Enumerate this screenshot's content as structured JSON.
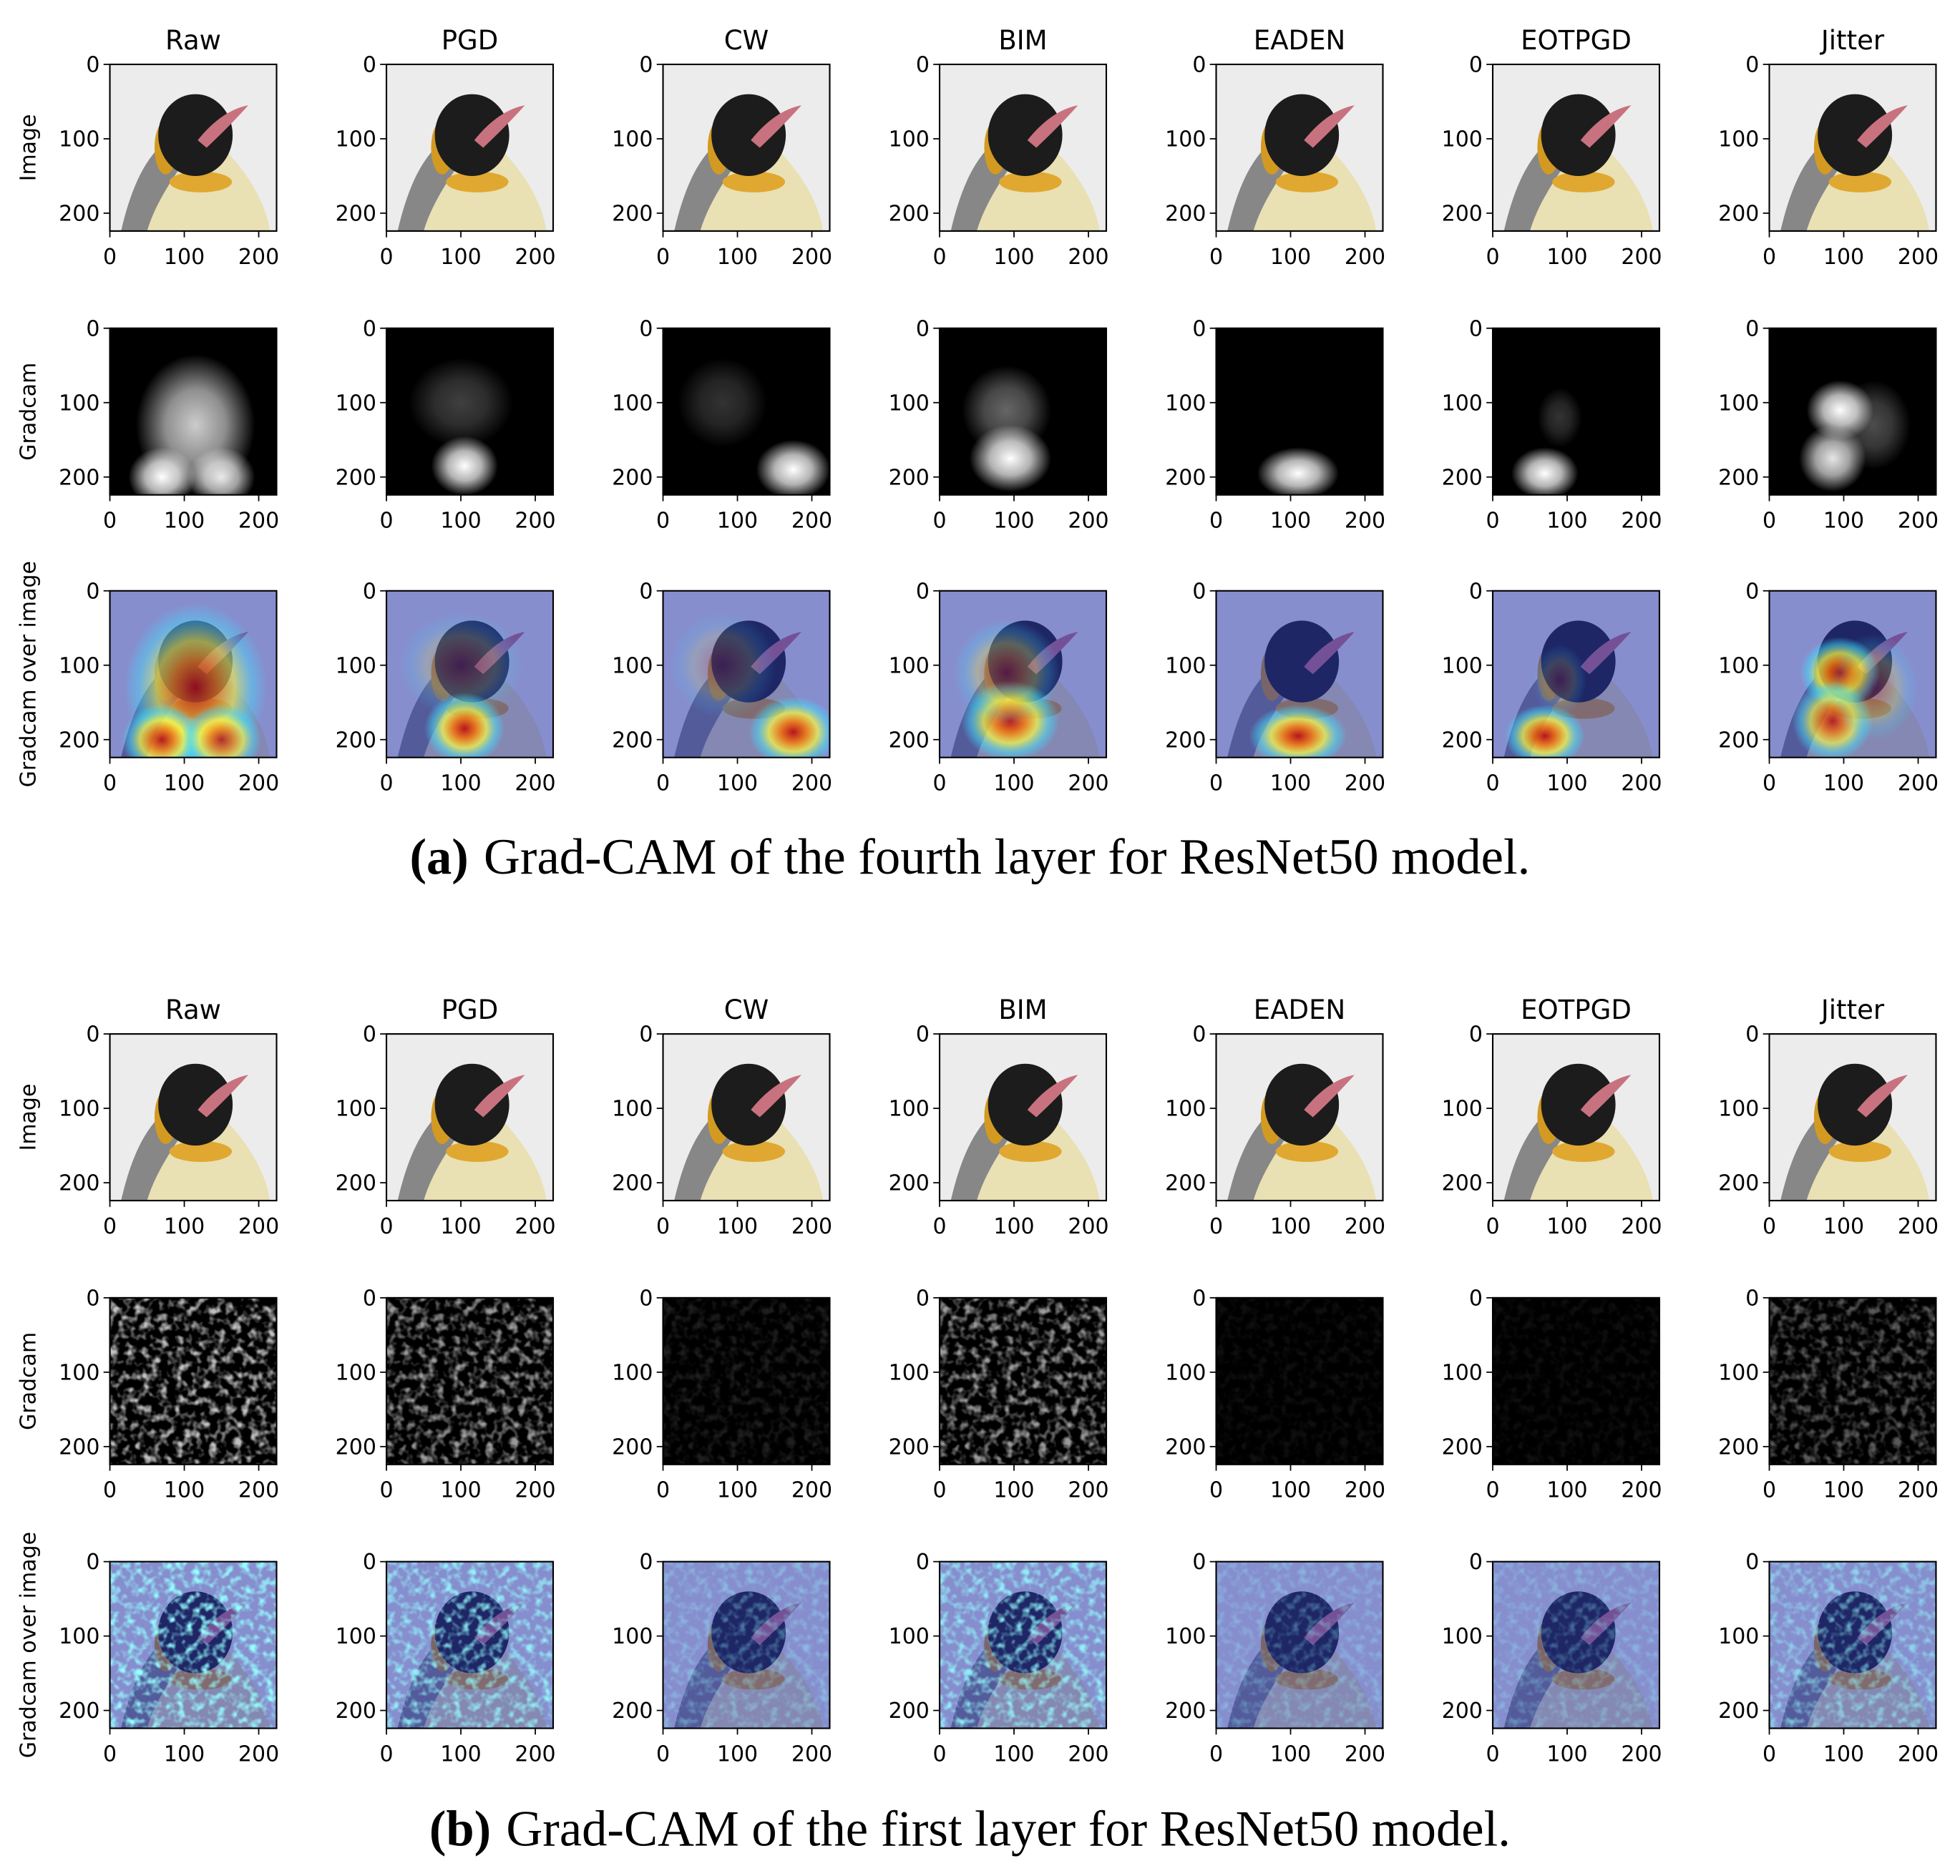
{
  "columns": [
    "Raw",
    "PGD",
    "CW",
    "BIM",
    "EADEN",
    "EOTPGD",
    "Jitter"
  ],
  "rows": [
    "Image",
    "Gradcam",
    "Gradcam over image"
  ],
  "axes": {
    "xlim": [
      0,
      224
    ],
    "ylim": [
      224,
      0
    ],
    "xticks": [
      0,
      100,
      200
    ],
    "yticks": [
      0,
      100,
      200
    ]
  },
  "panels": [
    {
      "caption": {
        "label": "(a)",
        "text": "Grad-CAM of the fourth layer for ResNet50 model."
      }
    },
    {
      "caption": {
        "label": "(b)",
        "text": "Grad-CAM of the first layer for ResNet50 model."
      }
    }
  ]
}
